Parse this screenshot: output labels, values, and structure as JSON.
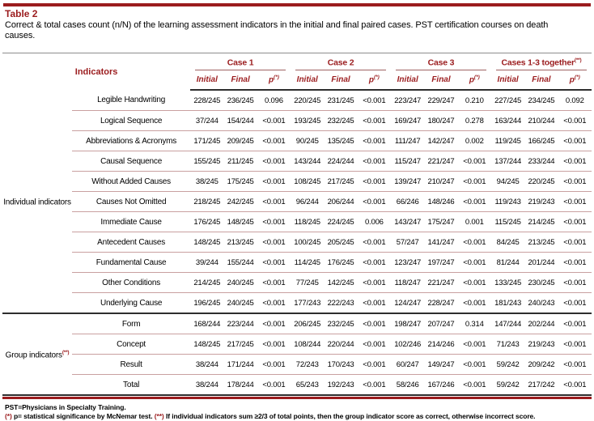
{
  "page": {
    "title": "Table 2",
    "caption": "Correct & total cases count (n/N) of the learning assessment indicators in the initial and final paired cases. PST certification courses on death causes."
  },
  "table": {
    "indicators_header": "Indicators",
    "case_groups": [
      {
        "label": "Case 1",
        "sup": ""
      },
      {
        "label": "Case 2",
        "sup": ""
      },
      {
        "label": "Case 3",
        "sup": ""
      },
      {
        "label": "Cases 1-3 together",
        "sup": "(**)"
      }
    ],
    "subcols": {
      "initial": "Initial",
      "final": "Final",
      "p": "p",
      "p_sup": "(*)"
    },
    "sections": [
      {
        "group_label": "Individual indicators",
        "group_sup": "",
        "rows": [
          {
            "indicator": "Legible Handwriting",
            "values": [
              "228/245",
              "236/245",
              "0.096",
              "220/245",
              "231/245",
              "<0.001",
              "223/247",
              "229/247",
              "0.210",
              "227/245",
              "234/245",
              "0.092"
            ]
          },
          {
            "indicator": "Logical Sequence",
            "values": [
              "37/244",
              "154/244",
              "<0.001",
              "193/245",
              "232/245",
              "<0.001",
              "169/247",
              "180/247",
              "0.278",
              "163/244",
              "210/244",
              "<0.001"
            ]
          },
          {
            "indicator": "Abbreviations & Acronyms",
            "values": [
              "171/245",
              "209/245",
              "<0.001",
              "90/245",
              "135/245",
              "<0.001",
              "111/247",
              "142/247",
              "0.002",
              "119/245",
              "166/245",
              "<0.001"
            ]
          },
          {
            "indicator": "Causal Sequence",
            "values": [
              "155/245",
              "211/245",
              "<0.001",
              "143/244",
              "224/244",
              "<0.001",
              "115/247",
              "221/247",
              "<0.001",
              "137/244",
              "233/244",
              "<0.001"
            ]
          },
          {
            "indicator": "Without Added Causes",
            "values": [
              "38/245",
              "175/245",
              "<0.001",
              "108/245",
              "217/245",
              "<0.001",
              "139/247",
              "210/247",
              "<0.001",
              "94/245",
              "220/245",
              "<0.001"
            ]
          },
          {
            "indicator": "Causes Not Omitted",
            "values": [
              "218/245",
              "242/245",
              "<0.001",
              "96/244",
              "206/244",
              "<0.001",
              "66/246",
              "148/246",
              "<0.001",
              "119/243",
              "219/243",
              "<0.001"
            ]
          },
          {
            "indicator": "Immediate Cause",
            "values": [
              "176/245",
              "148/245",
              "<0.001",
              "118/245",
              "224/245",
              "0.006",
              "143/247",
              "175/247",
              "0.001",
              "115/245",
              "214/245",
              "<0.001"
            ]
          },
          {
            "indicator": "Antecedent Causes",
            "values": [
              "148/245",
              "213/245",
              "<0.001",
              "100/245",
              "205/245",
              "<0.001",
              "57/247",
              "141/247",
              "<0.001",
              "84/245",
              "213/245",
              "<0.001"
            ]
          },
          {
            "indicator": "Fundamental Cause",
            "values": [
              "39/244",
              "155/244",
              "<0.001",
              "114/245",
              "176/245",
              "<0.001",
              "123/247",
              "197/247",
              "<0.001",
              "81/244",
              "201/244",
              "<0.001"
            ]
          },
          {
            "indicator": "Other Conditions",
            "values": [
              "214/245",
              "240/245",
              "<0.001",
              "77/245",
              "142/245",
              "<0.001",
              "118/247",
              "221/247",
              "<0.001",
              "133/245",
              "230/245",
              "<0.001"
            ]
          },
          {
            "indicator": "Underlying Cause",
            "values": [
              "196/245",
              "240/245",
              "<0.001",
              "177/243",
              "222/243",
              "<0.001",
              "124/247",
              "228/247",
              "<0.001",
              "181/243",
              "240/243",
              "<0.001"
            ]
          }
        ]
      },
      {
        "group_label": "Group indicators",
        "group_sup": "(**)",
        "rows": [
          {
            "indicator": "Form",
            "values": [
              "168/244",
              "223/244",
              "<0.001",
              "206/245",
              "232/245",
              "<0.001",
              "198/247",
              "207/247",
              "0.314",
              "147/244",
              "202/244",
              "<0.001"
            ]
          },
          {
            "indicator": "Concept",
            "values": [
              "148/245",
              "217/245",
              "<0.001",
              "108/244",
              "220/244",
              "<0.001",
              "102/246",
              "214/246",
              "<0.001",
              "71/243",
              "219/243",
              "<0.001"
            ]
          },
          {
            "indicator": "Result",
            "values": [
              "38/244",
              "171/244",
              "<0.001",
              "72/243",
              "170/243",
              "<0.001",
              "60/247",
              "149/247",
              "<0.001",
              "59/242",
              "209/242",
              "<0.001"
            ]
          },
          {
            "indicator": "Total",
            "values": [
              "38/244",
              "178/244",
              "<0.001",
              "65/243",
              "192/243",
              "<0.001",
              "58/246",
              "167/246",
              "<0.001",
              "59/242",
              "217/242",
              "<0.001"
            ]
          }
        ]
      }
    ]
  },
  "footnotes": {
    "line1": "PST=Physicians in Specialty Training.",
    "note1_marker": "(*)",
    "note1_text": "p= statistical significance by McNemar test.",
    "note2_marker": "(**)",
    "note2_text": "If individual indicators sum ≥2/3 of total points, then the group indicator score as correct, otherwise incorrect score."
  },
  "colors": {
    "accent_maroon": "#9b1c1e",
    "row_line": "#c9a0a0",
    "dark_rule": "#2e2e2e"
  }
}
